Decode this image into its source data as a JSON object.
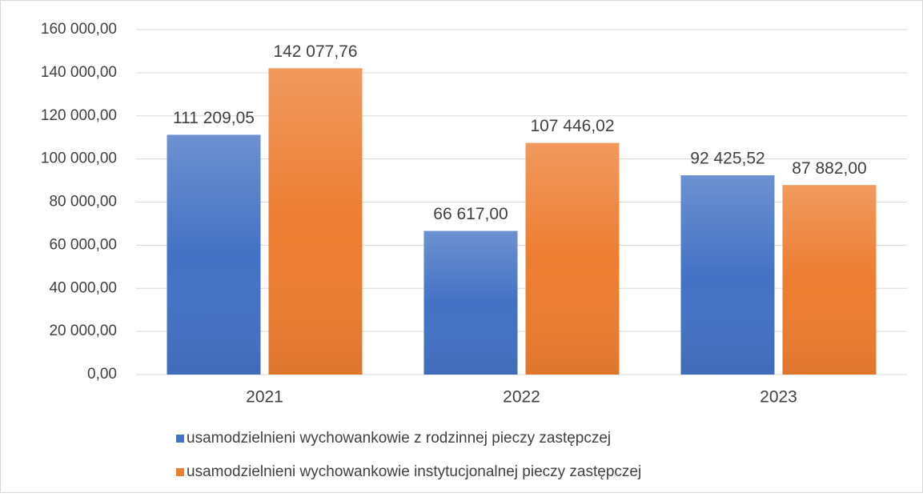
{
  "chart_data": {
    "type": "bar",
    "categories": [
      "2021",
      "2022",
      "2023"
    ],
    "series": [
      {
        "name": "usamodzielnieni wychowankowie z rodzinnej pieczy zastępczej",
        "color": "#4472c4",
        "values": [
          111209.05,
          66617.0,
          92425.52
        ],
        "value_labels": [
          "111 209,05",
          "66 617,00",
          "92 425,52"
        ]
      },
      {
        "name": "usamodzielnieni wychowankowie instytucjonalnej pieczy zastępczej",
        "color": "#ed7d31",
        "values": [
          142077.76,
          107446.02,
          87882.0
        ],
        "value_labels": [
          "142 077,76",
          "107 446,02",
          "87 882,00"
        ]
      }
    ],
    "ylim": [
      0,
      160000
    ],
    "yticks": [
      {
        "value": 0,
        "label": "0,00"
      },
      {
        "value": 20000,
        "label": "20 000,00"
      },
      {
        "value": 40000,
        "label": "40 000,00"
      },
      {
        "value": 60000,
        "label": "60 000,00"
      },
      {
        "value": 80000,
        "label": "80 000,00"
      },
      {
        "value": 100000,
        "label": "100 000,00"
      },
      {
        "value": 120000,
        "label": "120 000,00"
      },
      {
        "value": 140000,
        "label": "140 000,00"
      },
      {
        "value": 160000,
        "label": "160 000,00"
      }
    ],
    "grid": true,
    "legend": "bottom"
  }
}
